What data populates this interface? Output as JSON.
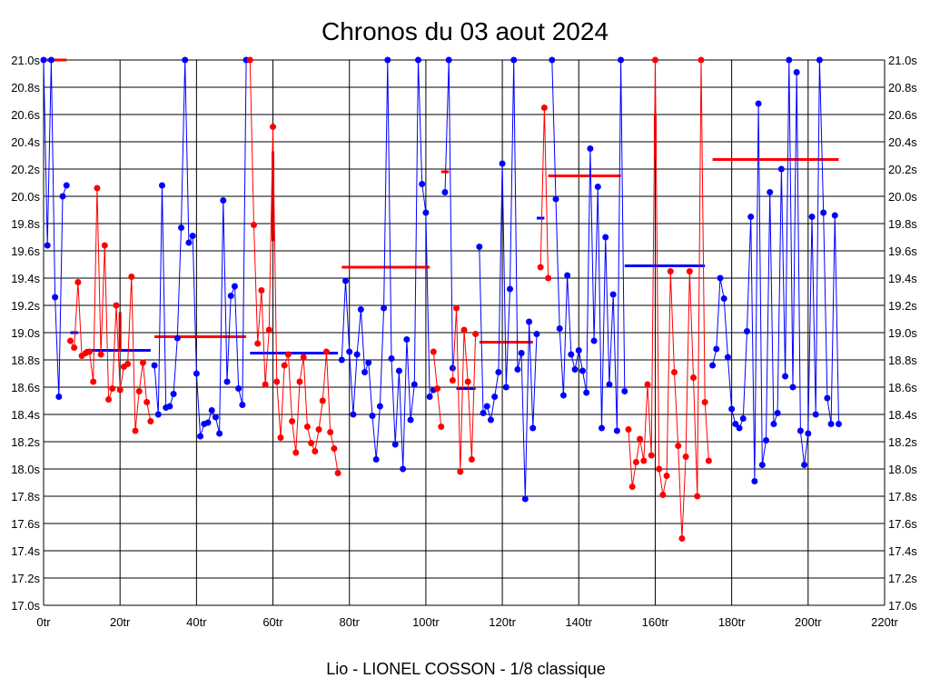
{
  "chart_data": {
    "type": "line",
    "title": "Chronos du 03 aout 2024",
    "subtitle": "Lio - LIONEL COSSON - 1/8 classique",
    "xlim": [
      0,
      220
    ],
    "ylim": [
      17.0,
      21.0
    ],
    "x_ticks": [
      0,
      20,
      40,
      60,
      80,
      100,
      120,
      140,
      160,
      180,
      200,
      220
    ],
    "x_tick_labels": [
      "0tr",
      "20tr",
      "40tr",
      "60tr",
      "80tr",
      "100tr",
      "120tr",
      "140tr",
      "160tr",
      "180tr",
      "200tr",
      "220tr"
    ],
    "y_ticks": [
      17.0,
      17.2,
      17.4,
      17.6,
      17.8,
      18.0,
      18.2,
      18.4,
      18.6,
      18.8,
      19.0,
      19.2,
      19.4,
      19.6,
      19.8,
      20.0,
      20.2,
      20.4,
      20.6,
      20.8,
      21.0
    ],
    "y_tick_labels": [
      "17.0s",
      "17.2s",
      "17.4s",
      "17.6s",
      "17.8s",
      "18.0s",
      "18.2s",
      "18.4s",
      "18.6s",
      "18.8s",
      "19.0s",
      "19.2s",
      "19.4s",
      "19.6s",
      "19.8s",
      "20.0s",
      "20.2s",
      "20.4s",
      "20.6s",
      "20.8s",
      "21.0s"
    ],
    "grid": true,
    "colors": {
      "red": "#ff0000",
      "blue": "#0000ff",
      "darkred": "#cc0000"
    },
    "series": [
      {
        "name": "stint-1",
        "color": "blue",
        "x": [
          0,
          1,
          2,
          3,
          4,
          5,
          6
        ],
        "values": [
          21.0,
          19.64,
          21.0,
          19.26,
          18.53,
          20.0,
          20.08
        ]
      },
      {
        "name": "stint-2",
        "color": "red",
        "x": [
          7,
          8,
          9,
          10,
          11,
          12,
          13,
          14,
          15,
          16,
          17,
          18,
          19,
          20,
          21,
          22,
          23,
          24,
          25,
          26,
          27,
          28
        ],
        "values": [
          18.94,
          18.89,
          19.37,
          18.83,
          18.85,
          18.86,
          18.64,
          20.06,
          18.84,
          19.64,
          18.51,
          18.59,
          19.2,
          18.58,
          18.75,
          18.77,
          19.41,
          18.28,
          18.57,
          18.78,
          18.49,
          18.35
        ]
      },
      {
        "name": "stint-3",
        "color": "blue",
        "x": [
          29,
          30,
          31,
          32,
          33,
          34,
          35,
          36,
          37,
          38,
          39,
          40,
          41,
          42,
          43,
          44,
          45,
          46,
          47,
          48,
          49,
          50,
          51,
          52,
          53
        ],
        "values": [
          18.76,
          18.4,
          20.08,
          18.45,
          18.46,
          18.55,
          18.96,
          19.77,
          21.0,
          19.66,
          19.71,
          18.7,
          18.24,
          18.33,
          18.34,
          18.43,
          18.38,
          18.26,
          19.97,
          18.64,
          19.27,
          19.34,
          18.59,
          18.47,
          21.0
        ]
      },
      {
        "name": "stint-4",
        "color": "red",
        "x": [
          54,
          55,
          56,
          57,
          58,
          59,
          60,
          61,
          62,
          63,
          64,
          65,
          66,
          67,
          68,
          69,
          70,
          71,
          72,
          73,
          74,
          75,
          76,
          77
        ],
        "values": [
          21.0,
          19.79,
          18.92,
          19.31,
          18.62,
          19.02,
          20.51,
          18.64,
          18.23,
          18.76,
          18.84,
          18.35,
          18.12,
          18.64,
          18.82,
          18.31,
          18.19,
          18.13,
          18.29,
          18.5,
          18.86,
          18.27,
          18.15,
          17.97
        ]
      },
      {
        "name": "stint-5",
        "color": "blue",
        "x": [
          78,
          79,
          80,
          81,
          82,
          83,
          84,
          85,
          86,
          87,
          88,
          89,
          90,
          91,
          92,
          93,
          94,
          95,
          96,
          97,
          98,
          99,
          100,
          101,
          102
        ],
        "values": [
          18.8,
          19.38,
          18.86,
          18.4,
          18.84,
          19.17,
          18.71,
          18.78,
          18.39,
          18.07,
          18.46,
          19.18,
          21.0,
          18.81,
          18.18,
          18.72,
          18.0,
          18.95,
          18.36,
          18.62,
          21.0,
          20.09,
          19.88,
          18.53,
          18.58
        ]
      },
      {
        "name": "stint-6",
        "color": "red",
        "x": [
          102,
          103,
          104
        ],
        "values": [
          18.86,
          18.59,
          18.31
        ]
      },
      {
        "name": "stint-7",
        "color": "blue",
        "x": [
          105,
          106,
          107
        ],
        "values": [
          20.03,
          21.0,
          18.74
        ]
      },
      {
        "name": "stint-8",
        "color": "red",
        "x": [
          107,
          108,
          109,
          110,
          111,
          112,
          113
        ],
        "values": [
          18.65,
          19.18,
          17.98,
          19.02,
          18.64,
          18.07,
          18.99
        ]
      },
      {
        "name": "stint-9",
        "color": "blue",
        "x": [
          114,
          115,
          116,
          117,
          118,
          119,
          120,
          121,
          122,
          123,
          124,
          125,
          126,
          127,
          128,
          129
        ],
        "values": [
          19.63,
          18.41,
          18.46,
          18.36,
          18.53,
          18.71,
          20.24,
          18.6,
          19.32,
          21.0,
          18.73,
          18.85,
          17.78,
          19.08,
          18.3,
          18.99
        ]
      },
      {
        "name": "stint-10",
        "color": "red",
        "x": [
          130,
          131,
          132
        ],
        "values": [
          19.48,
          20.65,
          19.4
        ]
      },
      {
        "name": "stint-11",
        "color": "blue",
        "x": [
          133,
          134,
          135,
          136,
          137,
          138,
          139,
          140,
          141,
          142,
          143,
          144,
          145,
          146,
          147,
          148,
          149,
          150,
          151,
          152
        ],
        "values": [
          21.0,
          19.98,
          19.03,
          18.54,
          19.42,
          18.84,
          18.73,
          18.87,
          18.72,
          18.56,
          20.35,
          18.94,
          20.07,
          18.3,
          19.7,
          18.62,
          19.28,
          18.28,
          21.0,
          18.57
        ]
      },
      {
        "name": "stint-12",
        "color": "red",
        "x": [
          153,
          154,
          155,
          156,
          157,
          158,
          159,
          160,
          161,
          162,
          163,
          164,
          165,
          166,
          167,
          168,
          169,
          170,
          171,
          172,
          173,
          174
        ],
        "values": [
          18.29,
          17.87,
          18.05,
          18.22,
          18.06,
          18.62,
          18.1,
          21.0,
          18.0,
          17.81,
          17.95,
          19.45,
          18.71,
          18.17,
          17.49,
          18.09,
          19.45,
          18.67,
          17.8,
          21.0,
          18.49,
          18.06
        ]
      },
      {
        "name": "stint-13",
        "color": "blue",
        "x": [
          175,
          176,
          177,
          178,
          179,
          180,
          181,
          182,
          183,
          184,
          185,
          186,
          187,
          188,
          189,
          190,
          191,
          192,
          193,
          194,
          195,
          196,
          197,
          198,
          199,
          200,
          201,
          202,
          203,
          204,
          205,
          206,
          207,
          208
        ],
        "values": [
          18.76,
          18.88,
          19.4,
          19.25,
          18.82,
          18.44,
          18.33,
          18.3,
          18.37,
          19.01,
          19.85,
          17.91,
          20.68,
          18.03,
          18.21,
          20.03,
          18.33,
          18.41,
          20.2,
          18.68,
          21.0,
          18.6,
          20.91,
          18.28,
          18.03,
          18.26,
          19.85,
          18.4,
          21.0,
          19.88,
          18.52,
          18.33,
          19.86,
          18.33
        ]
      }
    ],
    "averages": [
      {
        "color": "red",
        "x_start": 0,
        "x_end": 6,
        "value": 21.0
      },
      {
        "color": "blue",
        "x_start": 7,
        "x_end": 9,
        "value": 19.0
      },
      {
        "color": "blue",
        "x_start": 11,
        "x_end": 28,
        "value": 18.87
      },
      {
        "color": "red",
        "x_start": 29,
        "x_end": 53,
        "value": 18.97
      },
      {
        "color": "blue",
        "x_start": 54,
        "x_end": 77,
        "value": 18.85
      },
      {
        "color": "red",
        "x_start": 78,
        "x_end": 101,
        "value": 19.48
      },
      {
        "color": "red",
        "x_start": 104,
        "x_end": 106,
        "value": 20.18
      },
      {
        "color": "blue",
        "x_start": 108,
        "x_end": 113,
        "value": 18.59
      },
      {
        "color": "red",
        "x_start": 114,
        "x_end": 128,
        "value": 18.93
      },
      {
        "color": "blue",
        "x_start": 129,
        "x_end": 131,
        "value": 19.84
      },
      {
        "color": "red",
        "x_start": 132,
        "x_end": 151,
        "value": 20.15
      },
      {
        "color": "blue",
        "x_start": 152,
        "x_end": 173,
        "value": 19.49
      },
      {
        "color": "red",
        "x_start": 175,
        "x_end": 208,
        "value": 20.27
      }
    ],
    "markers": [
      {
        "color": "darkred",
        "x": 20,
        "y_from": 18.86,
        "y_to": 19.15
      },
      {
        "color": "darkred",
        "x": 60,
        "y_from": 19.67,
        "y_to": 20.33
      },
      {
        "color": "darkred",
        "x": 160,
        "y_from": 20.27,
        "y_to": 20.6
      }
    ]
  }
}
